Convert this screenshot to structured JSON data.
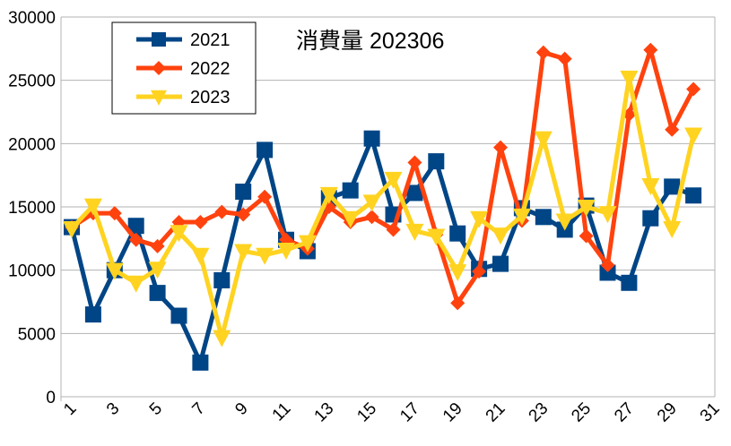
{
  "chart_data": {
    "type": "line",
    "title": "消費量 202306",
    "xlabel": "",
    "ylabel": "",
    "x": [
      1,
      2,
      3,
      4,
      5,
      6,
      7,
      8,
      9,
      10,
      11,
      12,
      13,
      14,
      15,
      16,
      17,
      18,
      19,
      20,
      21,
      22,
      23,
      24,
      25,
      26,
      27,
      28,
      29,
      30
    ],
    "xticks": [
      "1",
      "3",
      "5",
      "7",
      "9",
      "11",
      "13",
      "15",
      "17",
      "19",
      "21",
      "23",
      "25",
      "27",
      "29",
      "31"
    ],
    "xlim": [
      1,
      31
    ],
    "ylim": [
      0,
      30000
    ],
    "yticks": [
      "0",
      "5000",
      "10000",
      "15000",
      "20000",
      "25000",
      "30000"
    ],
    "grid": true,
    "legend": "top-left",
    "series": [
      {
        "name": "2021",
        "color": "#004586",
        "marker": "square",
        "values": [
          13400,
          6500,
          10000,
          13500,
          8200,
          6400,
          2700,
          9200,
          16200,
          19500,
          12400,
          11500,
          15700,
          16300,
          20400,
          14400,
          16100,
          18600,
          12900,
          10100,
          10500,
          14900,
          14200,
          13200,
          15100,
          9800,
          9000,
          14100,
          16600,
          15900
        ]
      },
      {
        "name": "2022",
        "color": "#ff420e",
        "marker": "diamond",
        "values": [
          13400,
          14500,
          14500,
          12400,
          11900,
          13800,
          13800,
          14600,
          14400,
          15800,
          12400,
          11700,
          15000,
          13800,
          14200,
          13200,
          18500,
          12800,
          7400,
          9900,
          19700,
          13900,
          27200,
          26700,
          12700,
          10400,
          22300,
          27400,
          21100,
          24300
        ]
      },
      {
        "name": "2023",
        "color": "#ffd320",
        "marker": "triangle-down",
        "values": [
          13300,
          15100,
          10000,
          9000,
          10100,
          13000,
          11200,
          4700,
          11500,
          11200,
          11600,
          12200,
          16000,
          14100,
          15400,
          17200,
          13100,
          12700,
          9900,
          14100,
          12800,
          14300,
          20400,
          13900,
          15000,
          14500,
          25200,
          16700,
          13300,
          20700
        ]
      }
    ]
  }
}
